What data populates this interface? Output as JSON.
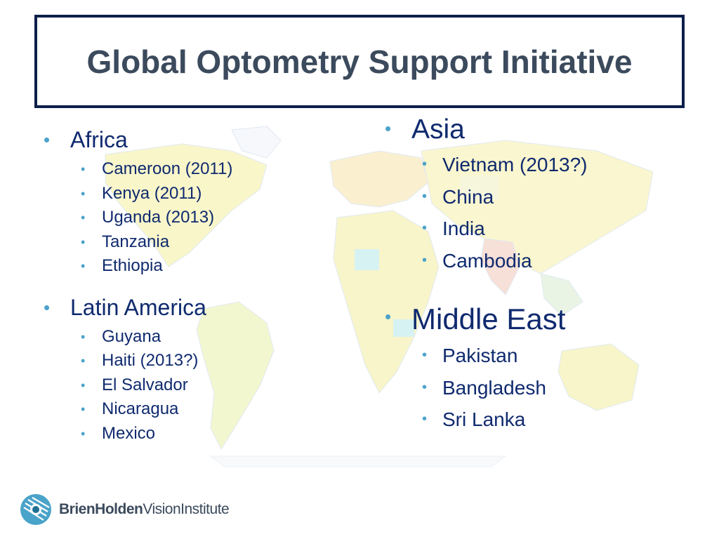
{
  "title": "Global Optometry Support Initiative",
  "left": [
    {
      "region": "Africa",
      "items": [
        "Cameroon (2011)",
        "Kenya (2011)",
        "Uganda (2013)",
        "Tanzania",
        "Ethiopia"
      ]
    },
    {
      "region": "Latin America",
      "items": [
        "Guyana",
        "Haiti (2013?)",
        "El Salvador",
        "Nicaragua",
        "Mexico"
      ]
    }
  ],
  "right": [
    {
      "region": "Asia",
      "items": [
        "Vietnam (2013?)",
        "China",
        "India",
        "Cambodia"
      ]
    },
    {
      "region": "Middle East",
      "items": [
        "Pakistan",
        "Bangladesh",
        "Sri Lanka"
      ]
    }
  ],
  "bullet": "•",
  "logo": {
    "bold": "BrienHolden",
    "rest": "VisionInstitute"
  },
  "colors": {
    "title_border": "#0d1f4a",
    "title_text": "#3b4a5c",
    "body_text": "#0f2a6e",
    "bullet": "#4aa3c9"
  }
}
